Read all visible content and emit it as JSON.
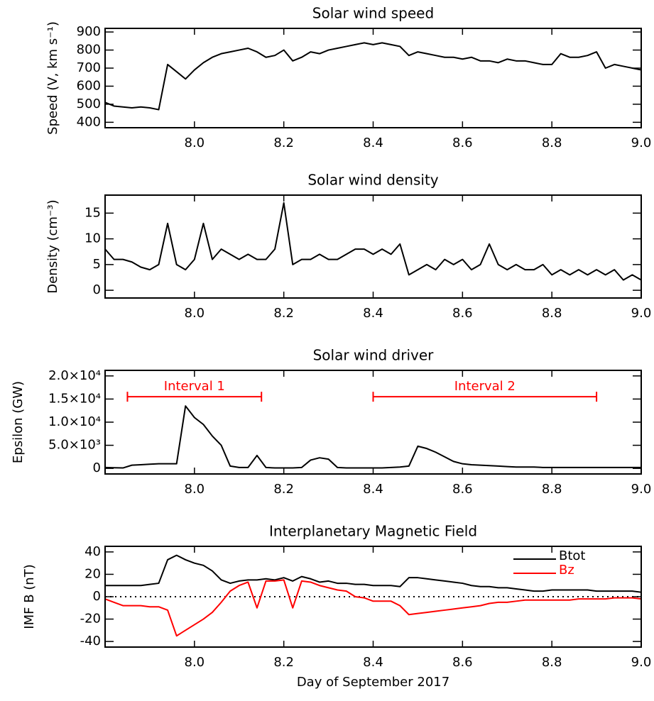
{
  "chart_data": [
    {
      "type": "line",
      "title": "Solar wind speed",
      "ylabel": "Speed (V, km s⁻¹)",
      "x": [
        7.8,
        7.82,
        7.84,
        7.86,
        7.88,
        7.9,
        7.92,
        7.94,
        7.96,
        7.98,
        8,
        8.02,
        8.04,
        8.06,
        8.08,
        8.1,
        8.12,
        8.14,
        8.16,
        8.18,
        8.2,
        8.22,
        8.24,
        8.26,
        8.28,
        8.3,
        8.32,
        8.34,
        8.36,
        8.38,
        8.4,
        8.42,
        8.44,
        8.46,
        8.48,
        8.5,
        8.52,
        8.54,
        8.56,
        8.58,
        8.6,
        8.62,
        8.64,
        8.66,
        8.68,
        8.7,
        8.72,
        8.74,
        8.76,
        8.78,
        8.8,
        8.82,
        8.84,
        8.86,
        8.88,
        8.9,
        8.92,
        8.94,
        8.96,
        8.98,
        9
      ],
      "values": [
        510,
        490,
        485,
        480,
        485,
        480,
        470,
        720,
        680,
        640,
        690,
        730,
        760,
        780,
        790,
        800,
        810,
        790,
        760,
        770,
        800,
        740,
        760,
        790,
        780,
        800,
        810,
        820,
        830,
        840,
        830,
        840,
        830,
        820,
        770,
        790,
        780,
        770,
        760,
        760,
        750,
        760,
        740,
        740,
        730,
        750,
        740,
        740,
        730,
        720,
        720,
        780,
        760,
        760,
        770,
        790,
        700,
        720,
        710,
        700,
        690
      ],
      "color": "#000000",
      "xlim": [
        7.8,
        9.0
      ],
      "xticks": [
        {
          "value": 8,
          "label": "8.0"
        },
        {
          "value": 8.2,
          "label": "8.2"
        },
        {
          "value": 8.4,
          "label": "8.4"
        },
        {
          "value": 8.6,
          "label": "8.6"
        },
        {
          "value": 8.8,
          "label": "8.8"
        },
        {
          "value": 9,
          "label": "9.0"
        }
      ],
      "ylim": [
        370,
        920
      ],
      "yticks": [
        400,
        500,
        600,
        700,
        800,
        900
      ]
    },
    {
      "type": "line",
      "title": "Solar wind density",
      "ylabel": "Density (cm⁻³)",
      "x": [
        7.8,
        7.82,
        7.84,
        7.86,
        7.88,
        7.9,
        7.92,
        7.94,
        7.96,
        7.98,
        8,
        8.02,
        8.04,
        8.06,
        8.08,
        8.1,
        8.12,
        8.14,
        8.16,
        8.18,
        8.2,
        8.22,
        8.24,
        8.26,
        8.28,
        8.3,
        8.32,
        8.34,
        8.36,
        8.38,
        8.4,
        8.42,
        8.44,
        8.46,
        8.48,
        8.5,
        8.52,
        8.54,
        8.56,
        8.58,
        8.6,
        8.62,
        8.64,
        8.66,
        8.68,
        8.7,
        8.72,
        8.74,
        8.76,
        8.78,
        8.8,
        8.82,
        8.84,
        8.86,
        8.88,
        8.9,
        8.92,
        8.94,
        8.96,
        8.98,
        9
      ],
      "values": [
        8,
        6,
        6,
        5.5,
        4.5,
        4,
        5,
        13,
        5,
        4,
        6,
        13,
        6,
        8,
        7,
        6,
        7,
        6,
        6,
        8,
        17,
        5,
        6,
        6,
        7,
        6,
        6,
        7,
        8,
        8,
        7,
        8,
        7,
        9,
        3,
        4,
        5,
        4,
        6,
        5,
        6,
        4,
        5,
        9,
        5,
        4,
        5,
        4,
        4,
        5,
        3,
        4,
        3,
        4,
        3,
        4,
        3,
        4,
        2,
        3,
        2
      ],
      "color": "#000000",
      "xlim": [
        7.8,
        9.0
      ],
      "xticks": [
        {
          "value": 8,
          "label": "8.0"
        },
        {
          "value": 8.2,
          "label": "8.2"
        },
        {
          "value": 8.4,
          "label": "8.4"
        },
        {
          "value": 8.6,
          "label": "8.6"
        },
        {
          "value": 8.8,
          "label": "8.8"
        },
        {
          "value": 9,
          "label": "9.0"
        }
      ],
      "ylim": [
        -1.5,
        18.5
      ],
      "yticks": [
        0,
        5,
        10,
        15
      ]
    },
    {
      "type": "line",
      "title": "Solar wind driver",
      "ylabel": "Epsilon (GW)",
      "x": [
        7.8,
        7.82,
        7.84,
        7.86,
        7.88,
        7.9,
        7.92,
        7.94,
        7.96,
        7.98,
        8,
        8.02,
        8.04,
        8.06,
        8.08,
        8.1,
        8.12,
        8.14,
        8.16,
        8.18,
        8.2,
        8.22,
        8.24,
        8.26,
        8.28,
        8.3,
        8.32,
        8.34,
        8.36,
        8.38,
        8.4,
        8.42,
        8.44,
        8.46,
        8.48,
        8.5,
        8.52,
        8.54,
        8.56,
        8.58,
        8.6,
        8.62,
        8.64,
        8.66,
        8.68,
        8.7,
        8.72,
        8.74,
        8.76,
        8.78,
        8.8,
        8.82,
        8.84,
        8.86,
        8.88,
        8.9,
        8.92,
        8.94,
        8.96,
        8.98,
        9
      ],
      "values": [
        200,
        150,
        100,
        700,
        800,
        900,
        1000,
        1000,
        1000,
        13500,
        11000,
        9500,
        7000,
        5000,
        500,
        200,
        200,
        2800,
        200,
        100,
        100,
        100,
        200,
        1800,
        2300,
        2000,
        200,
        100,
        100,
        100,
        100,
        100,
        200,
        300,
        500,
        4800,
        4300,
        3500,
        2500,
        1500,
        1000,
        800,
        700,
        600,
        500,
        400,
        300,
        300,
        300,
        200,
        200,
        200,
        200,
        200,
        200,
        200,
        200,
        200,
        200,
        200,
        200
      ],
      "color": "#000000",
      "xlim": [
        7.8,
        9.0
      ],
      "xticks": [
        {
          "value": 8,
          "label": "8.0"
        },
        {
          "value": 8.2,
          "label": "8.2"
        },
        {
          "value": 8.4,
          "label": "8.4"
        },
        {
          "value": 8.6,
          "label": "8.6"
        },
        {
          "value": 8.8,
          "label": "8.8"
        },
        {
          "value": 9,
          "label": "9.0"
        }
      ],
      "ylim": [
        -1200,
        21200
      ],
      "yticks": [
        0,
        {
          "value": 5000,
          "label": "5.0×10³"
        },
        {
          "value": 10000,
          "label": "1.0×10⁴"
        },
        {
          "value": 15000,
          "label": "1.5×10⁴"
        },
        {
          "value": 20000,
          "label": "2.0×10⁴"
        }
      ],
      "annotations": [
        {
          "text": "Interval 1",
          "x": [
            7.85,
            8.15
          ],
          "y": 15500,
          "color": "#ff0000"
        },
        {
          "text": "Interval 2",
          "x": [
            8.4,
            8.9
          ],
          "y": 15500,
          "color": "#ff0000"
        }
      ]
    },
    {
      "type": "line",
      "title": "Interplanetary Magnetic Field",
      "ylabel": "IMF B (nT)",
      "xlabel": "Day of September 2017",
      "x": [
        7.8,
        7.82,
        7.84,
        7.86,
        7.88,
        7.9,
        7.92,
        7.94,
        7.96,
        7.98,
        8,
        8.02,
        8.04,
        8.06,
        8.08,
        8.1,
        8.12,
        8.14,
        8.16,
        8.18,
        8.2,
        8.22,
        8.24,
        8.26,
        8.28,
        8.3,
        8.32,
        8.34,
        8.36,
        8.38,
        8.4,
        8.42,
        8.44,
        8.46,
        8.48,
        8.5,
        8.52,
        8.54,
        8.56,
        8.58,
        8.6,
        8.62,
        8.64,
        8.66,
        8.68,
        8.7,
        8.72,
        8.74,
        8.76,
        8.78,
        8.8,
        8.82,
        8.84,
        8.86,
        8.88,
        8.9,
        8.92,
        8.94,
        8.96,
        8.98,
        9
      ],
      "series": [
        {
          "name": "Btot",
          "color": "#000000",
          "values": [
            10,
            10,
            10,
            10,
            10,
            11,
            12,
            33,
            37,
            33,
            30,
            28,
            23,
            15,
            12,
            14,
            15,
            15,
            16,
            15,
            17,
            14,
            18,
            16,
            13,
            14,
            12,
            12,
            11,
            11,
            10,
            10,
            10,
            9,
            17,
            17,
            16,
            15,
            14,
            13,
            12,
            10,
            9,
            9,
            8,
            8,
            7,
            6,
            5,
            5,
            6,
            6,
            6,
            6,
            6,
            5,
            5,
            5,
            5,
            5,
            4
          ]
        },
        {
          "name": "Bz",
          "color": "#ff0000",
          "values": [
            -2,
            -5,
            -8,
            -8,
            -8,
            -9,
            -9,
            -12,
            -35,
            -30,
            -25,
            -20,
            -14,
            -5,
            5,
            10,
            13,
            -10,
            14,
            14,
            15,
            -10,
            14,
            13,
            10,
            8,
            6,
            5,
            0,
            -1,
            -4,
            -4,
            -4,
            -8,
            -16,
            -15,
            -14,
            -13,
            -12,
            -11,
            -10,
            -9,
            -8,
            -6,
            -5,
            -5,
            -4,
            -3,
            -3,
            -3,
            -3,
            -3,
            -3,
            -2,
            -2,
            -2,
            -2,
            -1,
            -1,
            -1,
            -2
          ]
        }
      ],
      "zero_line": true,
      "legend": "upper right",
      "xlim": [
        7.8,
        9.0
      ],
      "xticks": [
        {
          "value": 8,
          "label": "8.0"
        },
        {
          "value": 8.2,
          "label": "8.2"
        },
        {
          "value": 8.4,
          "label": "8.4"
        },
        {
          "value": 8.6,
          "label": "8.6"
        },
        {
          "value": 8.8,
          "label": "8.8"
        },
        {
          "value": 9,
          "label": "9.0"
        }
      ],
      "ylim": [
        -45,
        45
      ],
      "yticks": [
        -40,
        -20,
        0,
        20,
        40
      ]
    }
  ]
}
